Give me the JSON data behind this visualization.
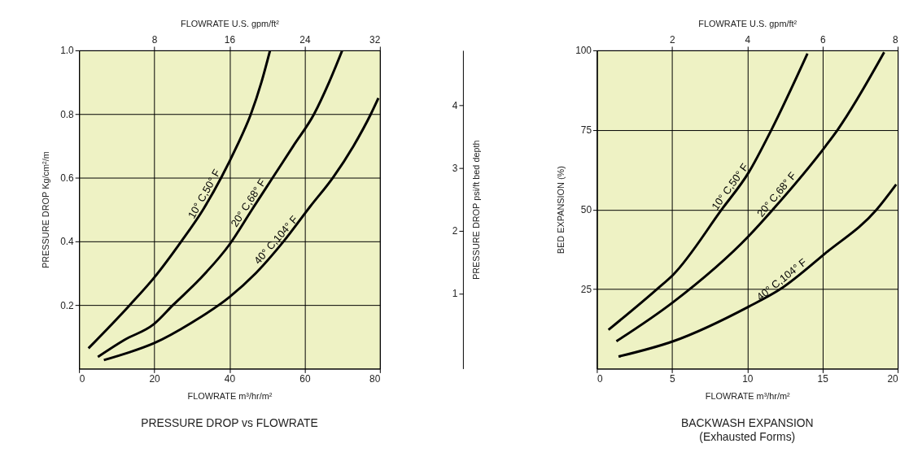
{
  "chart_data": [
    {
      "type": "line",
      "title": "PRESSURE DROP vs FLOWRATE",
      "xlabel": "FLOWRATE m³/hr/m²",
      "x2label": "FLOWRATE U.S. gpm/ft²",
      "ylabel": "PRESSURE DROP Kg/cm²/m",
      "y2label": "PRESSURE DROP psi/ft bed depth",
      "xlim": [
        0,
        80
      ],
      "xticks": [
        0,
        20,
        40,
        60,
        80
      ],
      "x2lim": [
        0,
        32
      ],
      "x2ticks": [
        8,
        16,
        24,
        32
      ],
      "ylim": [
        0,
        1
      ],
      "yticks": [
        0.2,
        0.4,
        0.6,
        0.8,
        {
          "value": 1,
          "label": "1.0"
        }
      ],
      "y2lim": [
        -0.2,
        4.88
      ],
      "y2ticks": [
        1,
        2,
        3,
        4
      ],
      "grid": true,
      "series": [
        {
          "name": "10° C,50° F",
          "color": "#000000",
          "x": [
            2.5,
            13.5,
            19.9,
            27.2,
            33,
            37.8,
            42,
            45.7,
            48.5,
            50.8
          ],
          "values": [
            0.064,
            0.2,
            0.285,
            0.4,
            0.5,
            0.6,
            0.7,
            0.8,
            0.9,
            1.0
          ]
        },
        {
          "name": "20° C,68° F",
          "color": "#000000",
          "x": [
            5,
            12,
            19.9,
            25,
            32,
            40,
            46,
            51.5,
            57,
            62.5,
            66.5,
            70
          ],
          "values": [
            0.037,
            0.09,
            0.14,
            0.2,
            0.28,
            0.39,
            0.5,
            0.6,
            0.7,
            0.8,
            0.9,
            1.0
          ]
        },
        {
          "name": "40° C,104° F",
          "color": "#000000",
          "x": [
            6.6,
            13,
            19.9,
            30,
            40,
            47,
            54.4,
            61.5,
            67.5,
            73,
            77.6,
            79.6
          ],
          "values": [
            0.027,
            0.05,
            0.08,
            0.145,
            0.225,
            0.3,
            0.4,
            0.51,
            0.6,
            0.7,
            0.8,
            0.85
          ]
        }
      ]
    },
    {
      "type": "line",
      "title": "BACKWASH EXPANSION",
      "subtitle": "(Exhausted Forms)",
      "xlabel": "FLOWRATE m³/hr/m²",
      "x2label": "FLOWRATE U.S. gpm/ft²",
      "ylabel": "BED EXPANSION (%)",
      "xlim": [
        0,
        20
      ],
      "xticks": [
        0,
        5,
        10,
        15,
        20
      ],
      "x2lim": [
        0,
        8
      ],
      "x2ticks": [
        2,
        4,
        6,
        8
      ],
      "ylim": [
        0,
        100
      ],
      "yticks": [
        25,
        50,
        75,
        100
      ],
      "grid": true,
      "series": [
        {
          "name": "10° C,50° F",
          "color": "#000000",
          "x": [
            0.77,
            4,
            5.07,
            8.3,
            10.1,
            11.6,
            14
          ],
          "values": [
            12.2,
            25,
            29.5,
            50,
            61.7,
            75,
            99
          ]
        },
        {
          "name": "20° C,68° F",
          "color": "#000000",
          "x": [
            1.3,
            5.07,
            10.1,
            11.7,
            15.2,
            16,
            19.1
          ],
          "values": [
            8.6,
            20.9,
            41.7,
            50,
            69.9,
            75,
            99.4
          ]
        },
        {
          "name": "40° C,104° F",
          "color": "#000000",
          "x": [
            1.44,
            5.07,
            10.1,
            12.2,
            15.2,
            18.6,
            19.9
          ],
          "values": [
            3.8,
            8.6,
            19.5,
            25,
            36.3,
            50,
            57.9
          ]
        }
      ]
    }
  ]
}
